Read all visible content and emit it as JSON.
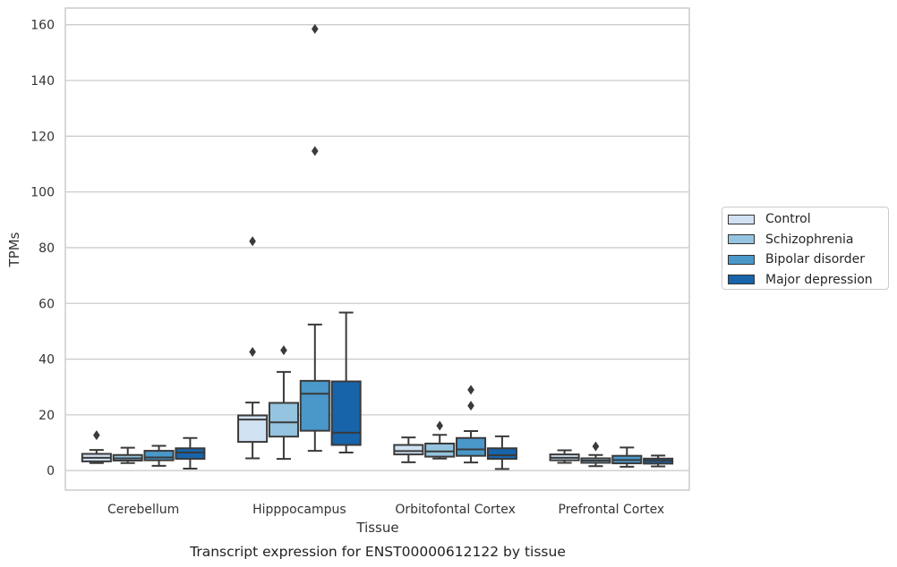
{
  "chart_data": {
    "type": "boxplot",
    "title": "",
    "caption": "Transcript expression for ENST00000612122 by tissue",
    "xlabel": "Tissue",
    "ylabel": "TPMs",
    "ylim": [
      -7,
      166
    ],
    "yticks": [
      0,
      20,
      40,
      60,
      80,
      100,
      120,
      140,
      160
    ],
    "grid": "horizontal",
    "legend_position": "right",
    "categories": [
      "Cerebellum",
      "Hipppocampus",
      "Orbitofontal Cortex",
      "Prefrontal Cortex"
    ],
    "series": [
      {
        "name": "Control",
        "color": "#d0e1f2",
        "boxes": [
          {
            "whislo": 2.7,
            "q1": 3.3,
            "med": 4.6,
            "q3": 6.0,
            "whishi": 7.4,
            "fliers": [
              12.7
            ]
          },
          {
            "whislo": 4.4,
            "q1": 10.3,
            "med": 18.3,
            "q3": 19.8,
            "whishi": 24.4,
            "fliers": [
              42.6,
              82.3
            ]
          },
          {
            "whislo": 3.0,
            "q1": 5.8,
            "med": 7.0,
            "q3": 9.2,
            "whishi": 11.9,
            "fliers": []
          },
          {
            "whislo": 2.8,
            "q1": 3.7,
            "med": 4.6,
            "q3": 5.8,
            "whishi": 7.3,
            "fliers": []
          }
        ]
      },
      {
        "name": "Schizophrenia",
        "color": "#94c4df",
        "boxes": [
          {
            "whislo": 2.7,
            "q1": 3.6,
            "med": 4.4,
            "q3": 5.6,
            "whishi": 8.2,
            "fliers": []
          },
          {
            "whislo": 4.2,
            "q1": 12.2,
            "med": 17.3,
            "q3": 24.3,
            "whishi": 35.4,
            "fliers": [
              43.2
            ]
          },
          {
            "whislo": 4.3,
            "q1": 5.0,
            "med": 6.9,
            "q3": 9.7,
            "whishi": 12.8,
            "fliers": [
              16.1
            ]
          },
          {
            "whislo": 1.6,
            "q1": 2.8,
            "med": 3.6,
            "q3": 4.4,
            "whishi": 5.6,
            "fliers": [
              8.7
            ]
          }
        ]
      },
      {
        "name": "Bipolar disorder",
        "color": "#4a98c9",
        "boxes": [
          {
            "whislo": 1.7,
            "q1": 3.7,
            "med": 4.7,
            "q3": 7.1,
            "whishi": 8.9,
            "fliers": []
          },
          {
            "whislo": 7.1,
            "q1": 14.3,
            "med": 27.6,
            "q3": 32.2,
            "whishi": 52.4,
            "fliers": [
              114.7,
              158.5
            ]
          },
          {
            "whislo": 2.9,
            "q1": 5.3,
            "med": 7.6,
            "q3": 11.7,
            "whishi": 14.2,
            "fliers": [
              23.3,
              29.0
            ]
          },
          {
            "whislo": 1.4,
            "q1": 2.6,
            "med": 3.8,
            "q3": 5.3,
            "whishi": 8.3,
            "fliers": []
          }
        ]
      },
      {
        "name": "Major depression",
        "color": "#1764ab",
        "boxes": [
          {
            "whislo": 0.7,
            "q1": 4.2,
            "med": 6.5,
            "q3": 8.0,
            "whishi": 11.7,
            "fliers": []
          },
          {
            "whislo": 6.5,
            "q1": 9.2,
            "med": 13.6,
            "q3": 32.0,
            "whishi": 56.7,
            "fliers": []
          },
          {
            "whislo": 0.6,
            "q1": 4.2,
            "med": 5.5,
            "q3": 8.0,
            "whishi": 12.3,
            "fliers": []
          },
          {
            "whislo": 1.5,
            "q1": 2.5,
            "med": 3.5,
            "q3": 4.3,
            "whishi": 5.4,
            "fliers": []
          }
        ]
      }
    ]
  }
}
